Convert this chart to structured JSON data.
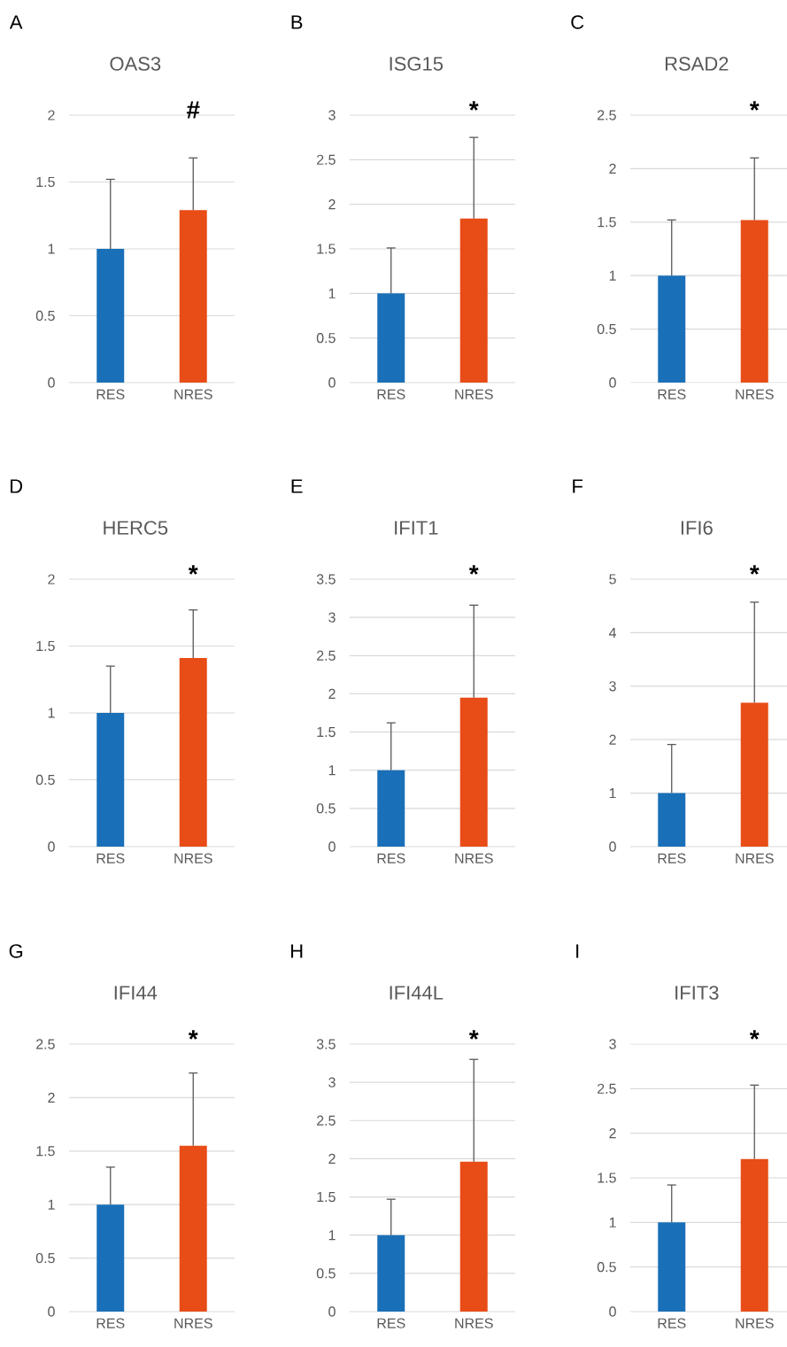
{
  "chart_data": [
    {
      "type": "bar",
      "title": "OAS3",
      "categories": [
        "RES",
        "NRES"
      ],
      "values": [
        1,
        1.29
      ],
      "errors": [
        [
          1,
          1.52
        ],
        [
          1.29,
          1.68
        ]
      ],
      "colors": [
        "#1a70b8",
        "#e84c17"
      ],
      "ylim": [
        0,
        2
      ],
      "yticks": [
        0,
        0.5,
        1,
        1.5,
        2
      ],
      "grid": "y",
      "annotations": [
        "A",
        "#"
      ]
    },
    {
      "type": "bar",
      "title": "ISG15",
      "categories": [
        "RES",
        "NRES"
      ],
      "values": [
        1,
        1.84
      ],
      "errors": [
        [
          1,
          1.51
        ],
        [
          1.84,
          2.75
        ]
      ],
      "colors": [
        "#1a70b8",
        "#e84c17"
      ],
      "ylim": [
        0,
        3
      ],
      "yticks": [
        0,
        0.5,
        1,
        1.5,
        2,
        2.5,
        3
      ],
      "grid": "y",
      "annotations": [
        "B",
        "*"
      ]
    },
    {
      "type": "bar",
      "title": "RSAD2",
      "categories": [
        "RES",
        "NRES"
      ],
      "values": [
        1,
        1.52
      ],
      "errors": [
        [
          1,
          1.52
        ],
        [
          1.52,
          2.1
        ]
      ],
      "colors": [
        "#1a70b8",
        "#e84c17"
      ],
      "ylim": [
        0,
        2.5
      ],
      "yticks": [
        0,
        0.5,
        1,
        1.5,
        2,
        2.5
      ],
      "grid": "y",
      "annotations": [
        "C",
        "*"
      ]
    },
    {
      "type": "bar",
      "title": "HERC5",
      "categories": [
        "RES",
        "NRES"
      ],
      "values": [
        1,
        1.41
      ],
      "errors": [
        [
          1,
          1.35
        ],
        [
          1.41,
          1.77
        ]
      ],
      "colors": [
        "#1a70b8",
        "#e84c17"
      ],
      "ylim": [
        0,
        2
      ],
      "yticks": [
        0,
        0.5,
        1,
        1.5,
        2
      ],
      "grid": "y",
      "annotations": [
        "D",
        "*"
      ]
    },
    {
      "type": "bar",
      "title": "IFIT1",
      "categories": [
        "RES",
        "NRES"
      ],
      "values": [
        1,
        1.95
      ],
      "errors": [
        [
          1,
          1.62
        ],
        [
          1.95,
          3.16
        ]
      ],
      "colors": [
        "#1a70b8",
        "#e84c17"
      ],
      "ylim": [
        0,
        3.5
      ],
      "yticks": [
        0,
        0.5,
        1,
        1.5,
        2,
        2.5,
        3,
        3.5
      ],
      "grid": "y",
      "annotations": [
        "E",
        "*"
      ]
    },
    {
      "type": "bar",
      "title": "IFI6",
      "categories": [
        "RES",
        "NRES"
      ],
      "values": [
        1,
        2.69
      ],
      "errors": [
        [
          1,
          1.91
        ],
        [
          2.69,
          4.57
        ]
      ],
      "colors": [
        "#1a70b8",
        "#e84c17"
      ],
      "ylim": [
        0,
        5
      ],
      "yticks": [
        0,
        1,
        2,
        3,
        4,
        5
      ],
      "grid": "y",
      "annotations": [
        "F",
        "*"
      ]
    },
    {
      "type": "bar",
      "title": "IFI44",
      "categories": [
        "RES",
        "NRES"
      ],
      "values": [
        1,
        1.55
      ],
      "errors": [
        [
          1,
          1.35
        ],
        [
          1.55,
          2.23
        ]
      ],
      "colors": [
        "#1a70b8",
        "#e84c17"
      ],
      "ylim": [
        0,
        2.5
      ],
      "yticks": [
        0,
        0.5,
        1,
        1.5,
        2,
        2.5
      ],
      "grid": "y",
      "annotations": [
        "G",
        "*"
      ]
    },
    {
      "type": "bar",
      "title": "IFI44L",
      "categories": [
        "RES",
        "NRES"
      ],
      "values": [
        1,
        1.96
      ],
      "errors": [
        [
          1,
          1.47
        ],
        [
          1.96,
          3.3
        ]
      ],
      "colors": [
        "#1a70b8",
        "#e84c17"
      ],
      "ylim": [
        0,
        3.5
      ],
      "yticks": [
        0,
        0.5,
        1,
        1.5,
        2,
        2.5,
        3,
        3.5
      ],
      "grid": "y",
      "annotations": [
        "H",
        "*"
      ]
    },
    {
      "type": "bar",
      "title": "IFIT3",
      "categories": [
        "RES",
        "NRES"
      ],
      "values": [
        1,
        1.71
      ],
      "errors": [
        [
          1,
          1.42
        ],
        [
          1.71,
          2.54
        ]
      ],
      "colors": [
        "#1a70b8",
        "#e84c17"
      ],
      "ylim": [
        0,
        3
      ],
      "yticks": [
        0,
        0.5,
        1,
        1.5,
        2,
        2.5,
        3
      ],
      "grid": "y",
      "annotations": [
        "I",
        "*"
      ]
    }
  ]
}
